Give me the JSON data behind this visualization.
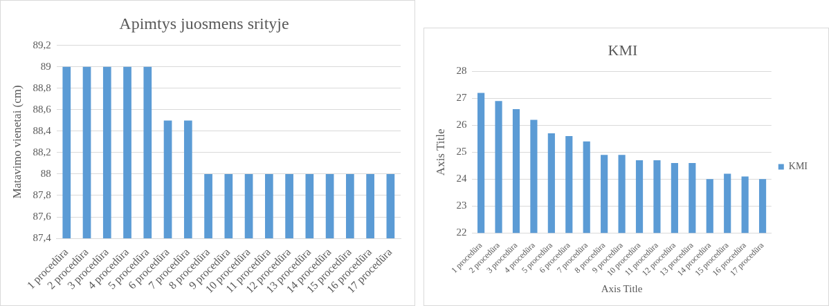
{
  "chart_data": [
    {
      "type": "bar",
      "title": "Apimtys juosmens srityje",
      "ylabel": "Matavimo vienetai (cm)",
      "categories": [
        "1 procedūra",
        "2 procedūra",
        "3 procedūra",
        "4 procedūra",
        "5 procedūra",
        "6 procedūra",
        "7 procedūra",
        "8 procedūra",
        "9 procedūra",
        "10 procedūra",
        "11 procedūra",
        "12 procedūra",
        "13 procedūra",
        "14 procedūra",
        "15 procedūra",
        "16 procedūra",
        "17 procedūra"
      ],
      "values": [
        89,
        89,
        89,
        89,
        89,
        88.5,
        88.5,
        88,
        88,
        88,
        88,
        88,
        88,
        88,
        88,
        88,
        88
      ],
      "color": "#5b9bd5",
      "ylim": [
        87.4,
        89.2
      ],
      "yticks": [
        {
          "value": 87.4,
          "label": "87,4"
        },
        {
          "value": 87.6,
          "label": "87,6"
        },
        {
          "value": 87.8,
          "label": "87,8"
        },
        {
          "value": 88,
          "label": "88"
        },
        {
          "value": 88.2,
          "label": "88,2"
        },
        {
          "value": 88.4,
          "label": "88,4"
        },
        {
          "value": 88.6,
          "label": "88,6"
        },
        {
          "value": 88.8,
          "label": "88,8"
        },
        {
          "value": 89,
          "label": "89"
        },
        {
          "value": 89.2,
          "label": "89,2"
        }
      ],
      "grid": "y",
      "legend": false
    },
    {
      "type": "bar",
      "title": "KMI",
      "xlabel": "Axis Title",
      "ylabel": "Axis Title",
      "categories": [
        "1 procedūra",
        "2 procedūra",
        "3 procedūra",
        "4 procedūra",
        "5 procedūra",
        "6 procedūra",
        "7 procedūra",
        "8 procedūra",
        "9 procedūra",
        "10 procedūra",
        "11 procedūra",
        "12 procedūra",
        "13 procedūra",
        "14 procedūra",
        "15 procedūra",
        "16 procedūra",
        "17 procedūra"
      ],
      "series": [
        {
          "name": "KMI",
          "color": "#5b9bd5",
          "values": [
            27.2,
            26.9,
            26.6,
            26.2,
            25.7,
            25.6,
            25.4,
            24.9,
            24.9,
            24.7,
            24.7,
            24.6,
            24.6,
            24.0,
            24.2,
            24.1,
            24.0
          ]
        }
      ],
      "ylim": [
        22,
        28
      ],
      "yticks": [
        22,
        23,
        24,
        25,
        26,
        27,
        28
      ],
      "grid": "y",
      "legend": "right"
    }
  ]
}
